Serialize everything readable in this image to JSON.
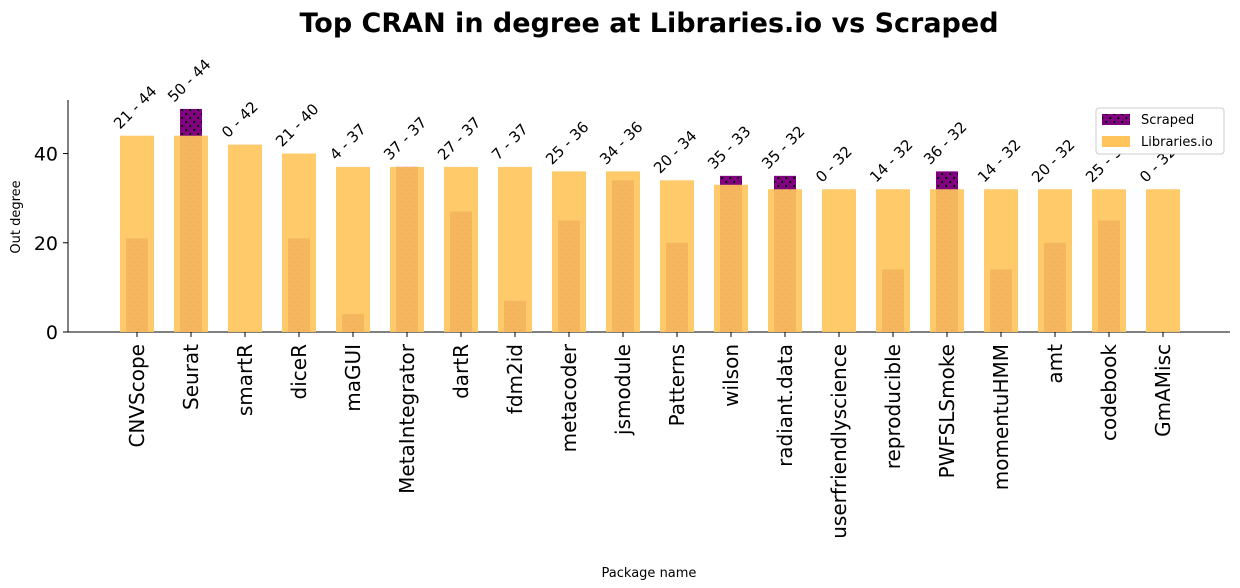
{
  "chart_data": {
    "type": "bar",
    "title": "Top CRAN in degree at Libraries.io vs Scraped",
    "xlabel": "Package name",
    "ylabel": "Out degree",
    "ylim": [
      0,
      52
    ],
    "yticks": [
      0,
      20,
      40
    ],
    "legend_position": "top-right",
    "categories": [
      "CNVScope",
      "Seurat",
      "smartR",
      "diceR",
      "maGUI",
      "MetaIntegrator",
      "dartR",
      "fdm2id",
      "metacoder",
      "jsmodule",
      "Patterns",
      "wilson",
      "radiant.data",
      "userfriendlyscience",
      "reproducible",
      "PWFSLSmoke",
      "momentuHMM",
      "amt",
      "codebook",
      "GmAMisc"
    ],
    "series": [
      {
        "name": "Scraped",
        "color": "#800080",
        "values": [
          21,
          50,
          0,
          21,
          4,
          37,
          27,
          7,
          25,
          34,
          20,
          35,
          35,
          0,
          14,
          36,
          14,
          20,
          25,
          0
        ]
      },
      {
        "name": "Libraries.io",
        "color": "#ffc55c",
        "values": [
          44,
          44,
          42,
          40,
          37,
          37,
          37,
          37,
          36,
          36,
          34,
          33,
          32,
          32,
          32,
          32,
          32,
          32,
          32,
          32
        ]
      }
    ],
    "bar_labels": [
      "21 - 44",
      "50 - 44",
      "0 - 42",
      "21 - 40",
      "4 - 37",
      "37 - 37",
      "27 - 37",
      "7 - 37",
      "25 - 36",
      "34 - 36",
      "20 - 34",
      "35 - 33",
      "35 - 32",
      "0 - 32",
      "14 - 32",
      "36 - 32",
      "14 - 32",
      "20 - 32",
      "25 - 32",
      "0 - 32"
    ]
  }
}
